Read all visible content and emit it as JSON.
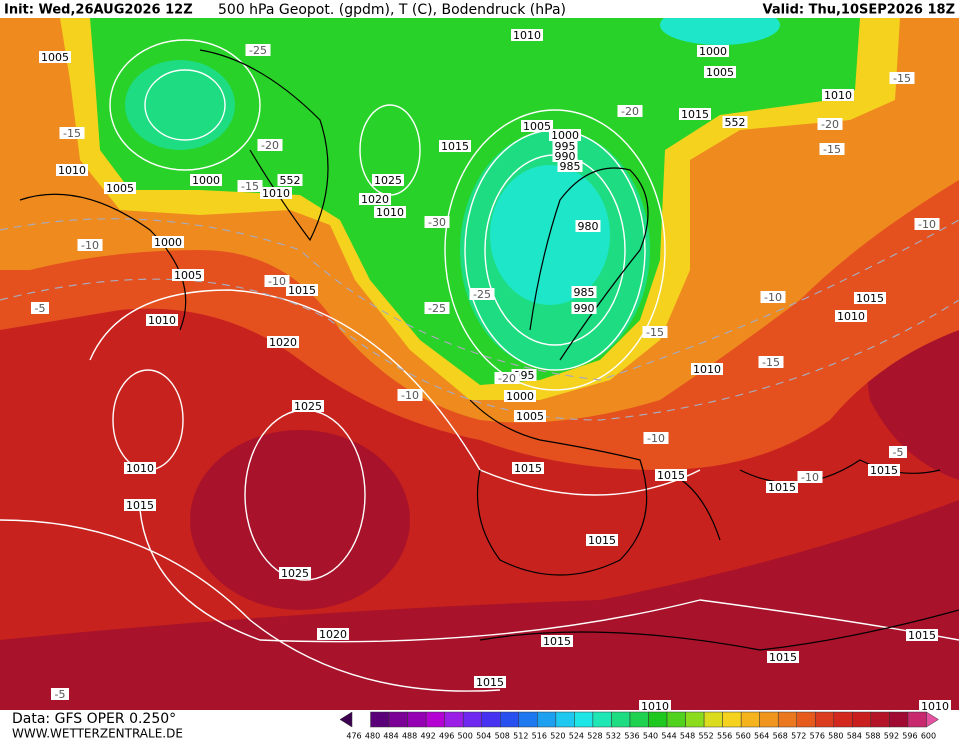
{
  "header": {
    "init": "Init: Wed,26AUG2026 12Z",
    "title": "500 hPa Geopot. (gpdm), T (C), Bodendruck (hPa)",
    "valid": "Valid: Thu,10SEP2026 18Z"
  },
  "footer": {
    "data": "Data: GFS OPER 0.250°",
    "site": "WWW.WETTERZENTRALE.DE"
  },
  "colorbar": {
    "levels": [
      476,
      480,
      484,
      488,
      492,
      496,
      500,
      504,
      508,
      512,
      516,
      520,
      524,
      528,
      532,
      536,
      540,
      544,
      548,
      552,
      556,
      560,
      564,
      568,
      572,
      576,
      580,
      584,
      588,
      592,
      596,
      600
    ],
    "colors": [
      "#3c0050",
      "#5a0078",
      "#7a0096",
      "#9600b4",
      "#b400d2",
      "#9a1ee6",
      "#6e28f0",
      "#4632f0",
      "#2850f0",
      "#1e78f0",
      "#1ea0f0",
      "#1ec8f0",
      "#1ee6e6",
      "#1ee6b4",
      "#1edc82",
      "#1ed250",
      "#1ec81e",
      "#50d21e",
      "#8cdc1e",
      "#dcdc1e",
      "#f5d21e",
      "#f5b41e",
      "#f0961e",
      "#eb781e",
      "#e65a1e",
      "#dc3c1e",
      "#d2281e",
      "#c81e1e",
      "#b41428",
      "#a00a32",
      "#c8286e",
      "#e650a0"
    ]
  },
  "map_labels": [
    "1005",
    "1010",
    "1005",
    "1000",
    "1005",
    "1010",
    "1015",
    "1020",
    "1025",
    "1010",
    "1015",
    "1025",
    "1020",
    "1015",
    "1015",
    "1015",
    "1015",
    "1005",
    "1000",
    "995",
    "990",
    "985",
    "980",
    "985",
    "990",
    "995",
    "1000",
    "1005",
    "1015",
    "1025",
    "1020",
    "1010",
    "1010",
    "1000",
    "1010",
    "1000",
    "1005",
    "1010",
    "1015",
    "1010",
    "1015",
    "1010",
    "1015",
    "1015",
    "1015",
    "1015",
    "1015",
    "1010",
    "1010",
    "-25",
    "-20",
    "-15",
    "-15",
    "-10",
    "-5",
    "-10",
    "-10",
    "-25",
    "-30",
    "-25",
    "-20",
    "-20",
    "-15",
    "-10",
    "-15",
    "-10",
    "-10",
    "-5",
    "-10",
    "-15",
    "-20",
    "-15",
    "-5",
    "552",
    "552"
  ]
}
